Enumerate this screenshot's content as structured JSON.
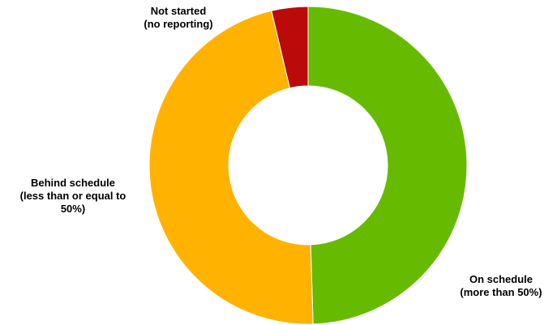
{
  "chart_data": {
    "type": "pie",
    "variant": "donut",
    "title": "",
    "slices": [
      {
        "id": "on-schedule",
        "label_lines": [
          "On schedule",
          "(more than 50%)"
        ],
        "value": 49.5,
        "color": "#66BB00"
      },
      {
        "id": "behind",
        "label_lines": [
          "Behind schedule",
          "(less than or equal to",
          "50%)"
        ],
        "value": 46.8,
        "color": "#FFB300"
      },
      {
        "id": "not-started",
        "label_lines": [
          "Not started",
          "(no reporting)"
        ],
        "value": 3.7,
        "color": "#BB0A0A"
      }
    ],
    "start_angle_deg": 0,
    "direction": "clockwise",
    "legend": "none"
  }
}
